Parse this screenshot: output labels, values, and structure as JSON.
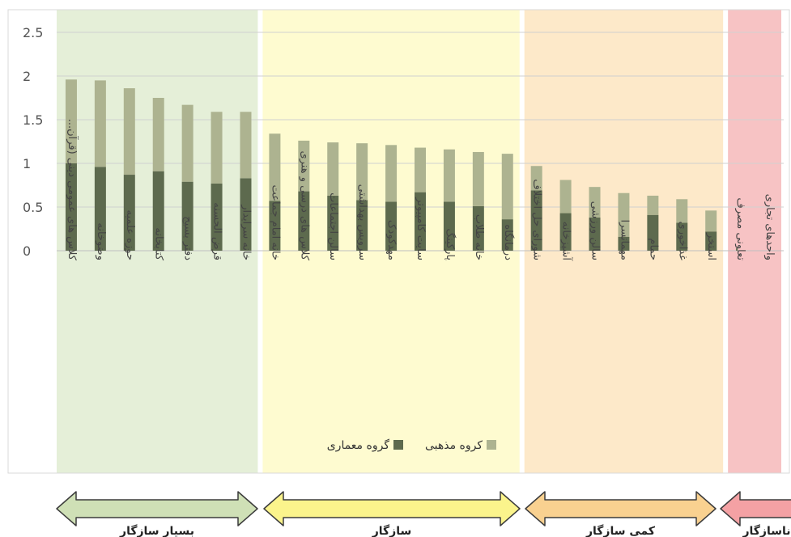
{
  "chart_data": {
    "type": "bar",
    "stacked": true,
    "ylim": [
      0,
      2.5
    ],
    "yticks": [
      "0",
      "0.5",
      "1",
      "1.5",
      "2",
      "2.5"
    ],
    "grid": true,
    "legend_position": "bottom-center",
    "categories": [
      "کلاس های عمومی دینی (قرآن...",
      "وضوخانه",
      "حوزه علمیه",
      "کتابخانه",
      "دفتر بسیج",
      "قرض الحسنه",
      "خانه سرایدار",
      "خانه امام جماعت",
      "کلاس های درسی و هنری",
      "سالن اجتماعات",
      "سرویس بهداشتی",
      "مهدکودک",
      "سایت کامپیوتر",
      "پارکینگ",
      "خانه طلاب",
      "درمانگاه",
      "شورای حل اختلاف",
      "آشپزخانه",
      "سالن ورزشی",
      "مهمانسرا",
      "حمام",
      "غذاخوری",
      "استخر",
      "تعاونی مصرف",
      "واحدهای تجاری"
    ],
    "series": [
      {
        "name": "گروه معماری",
        "color": "#5d6a4e",
        "values": [
          1.0,
          0.96,
          0.87,
          0.91,
          0.79,
          0.77,
          0.83,
          0.57,
          0.68,
          0.63,
          0.58,
          0.56,
          0.67,
          0.56,
          0.51,
          0.36,
          0.69,
          0.43,
          0.38,
          0.16,
          0.41,
          0.32,
          0.22,
          0.0,
          0.0
        ]
      },
      {
        "name": "کروه مذهبی",
        "color": "#adb390",
        "values": [
          0.96,
          0.99,
          0.99,
          0.84,
          0.88,
          0.82,
          0.76,
          0.77,
          0.58,
          0.61,
          0.65,
          0.65,
          0.51,
          0.6,
          0.62,
          0.75,
          0.28,
          0.38,
          0.35,
          0.5,
          0.22,
          0.27,
          0.24,
          0.0,
          0.0
        ]
      }
    ],
    "bands": [
      {
        "label": "بسیار سازگار",
        "first": 0,
        "last": 6,
        "fill": "#e5efd8",
        "arrow_fill": "#cfe0b6",
        "arrow_stroke": "#3c3c3c"
      },
      {
        "label": "سازگار",
        "first": 7,
        "last": 15,
        "fill": "#fefbd0",
        "arrow_fill": "#fbf48c",
        "arrow_stroke": "#3c3c3c"
      },
      {
        "label": "کمی سازگار",
        "first": 16,
        "last": 22,
        "fill": "#fde9c9",
        "arrow_fill": "#f9d190",
        "arrow_stroke": "#3c3c3c"
      },
      {
        "label": "ناسازگار",
        "first": 23,
        "last": 24,
        "fill": "#f7c3c4",
        "arrow_fill": "#f4a1a4",
        "arrow_stroke": "#3c3c3c"
      }
    ]
  }
}
